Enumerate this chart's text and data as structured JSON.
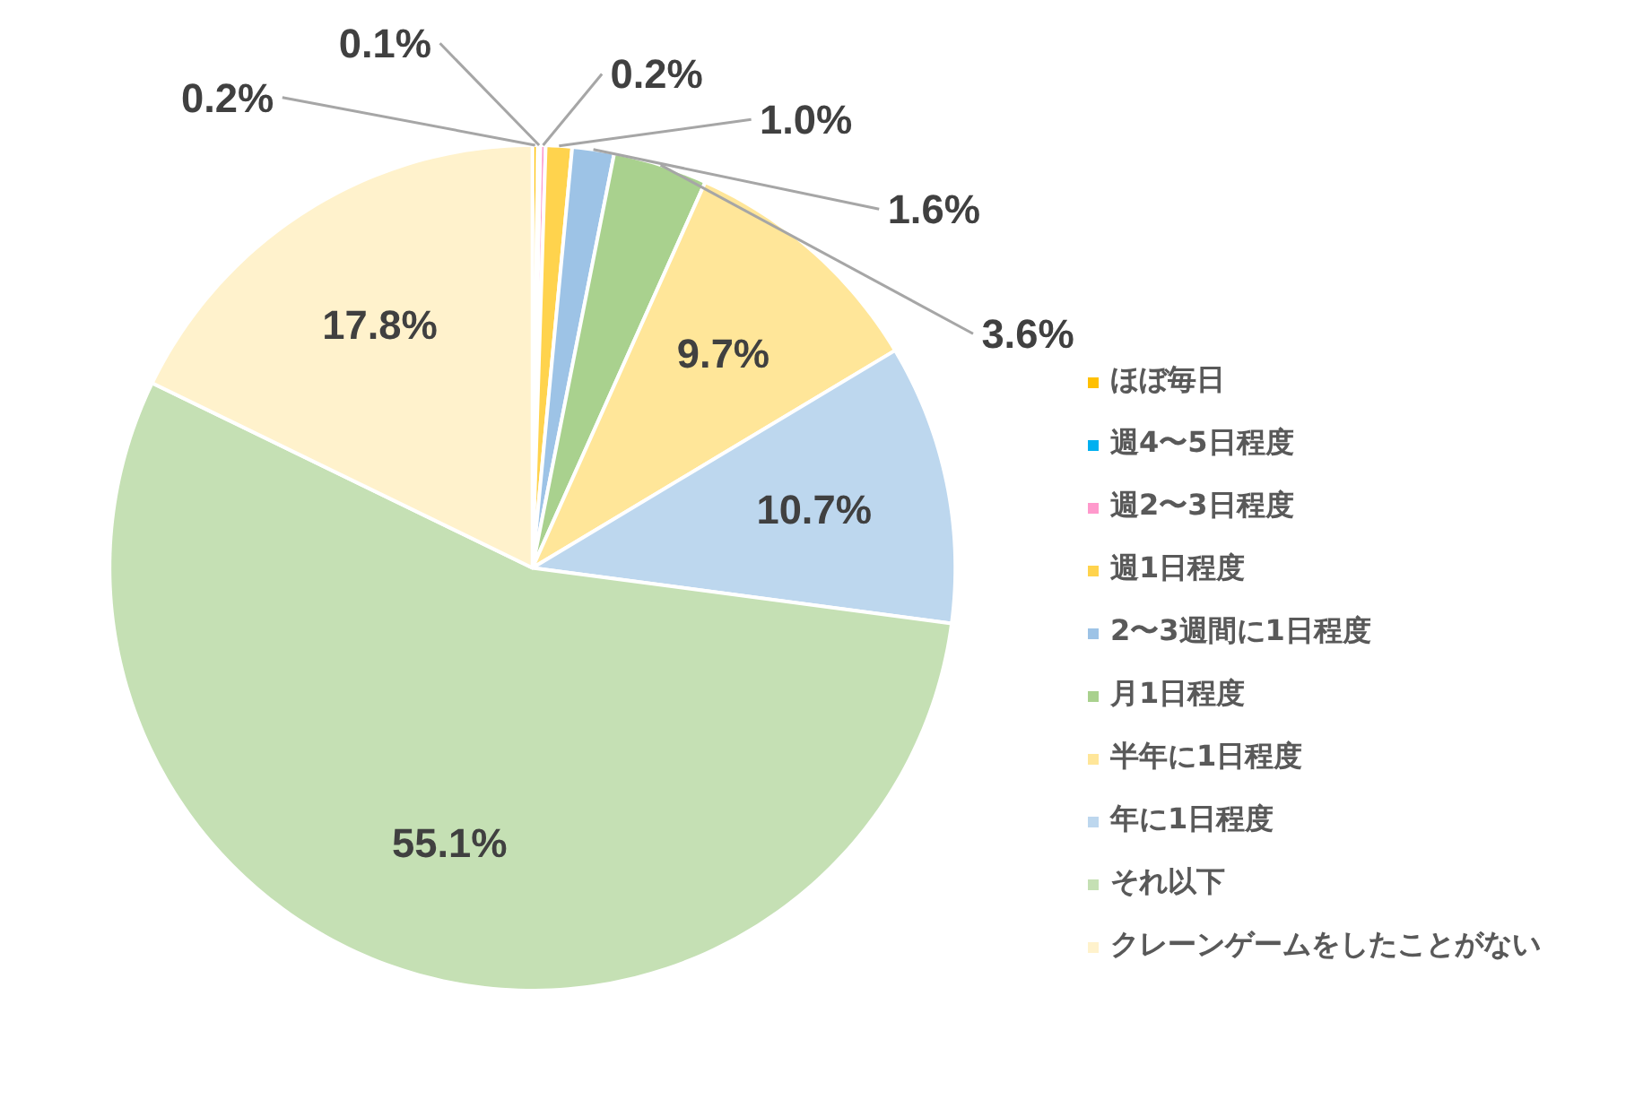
{
  "chart_data": {
    "type": "pie",
    "categories": [
      "ほぼ毎日",
      "週4〜5日程度",
      "週2〜3日程度",
      "週1日程度",
      "2〜3週間に1日程度",
      "月1日程度",
      "半年に1日程度",
      "年に1日程度",
      "それ以下",
      "クレーンゲームをしたことがない"
    ],
    "values": [
      0.2,
      0.1,
      0.2,
      1.0,
      1.6,
      3.6,
      9.7,
      10.7,
      55.1,
      17.8
    ],
    "colors": [
      "#ffc000",
      "#00b0f0",
      "#ff99cc",
      "#ffd34d",
      "#9dc3e6",
      "#a9d18e",
      "#ffe699",
      "#bdd7ee",
      "#c5e0b4",
      "#fff2cc"
    ],
    "value_labels": [
      "0.2%",
      "0.1%",
      "0.2%",
      "1.0%",
      "1.6%",
      "3.6%",
      "9.7%",
      "10.7%",
      "55.1%",
      "17.8%"
    ],
    "legend": "right"
  }
}
